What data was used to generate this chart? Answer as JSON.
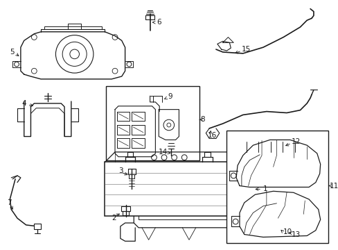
{
  "background_color": "#ffffff",
  "line_color": "#1a1a1a",
  "fig_w": 4.89,
  "fig_h": 3.6,
  "dpi": 100,
  "arrow_props": {
    "color": "#1a1a1a",
    "lw": 0.6,
    "ms": 6
  },
  "label_fontsize": 7.5
}
